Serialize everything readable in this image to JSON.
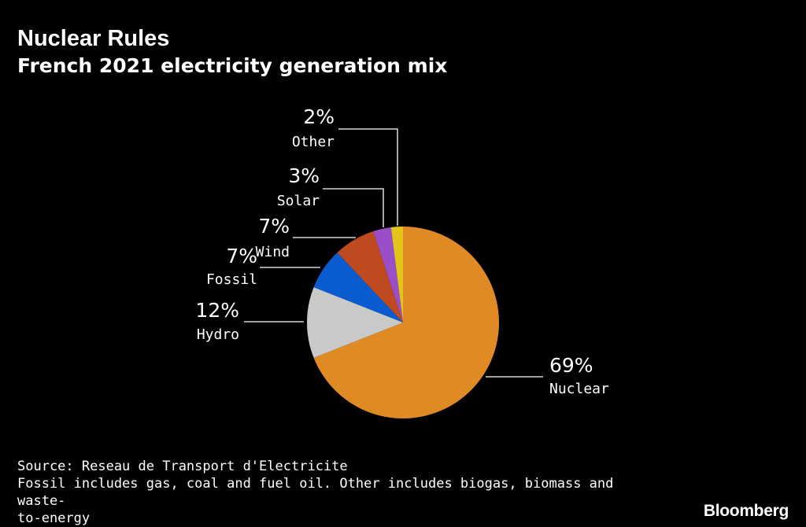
{
  "header": {
    "title": "Nuclear Rules",
    "subtitle": "French 2021 electricity generation mix"
  },
  "chart_data": {
    "type": "pie",
    "start_angle": "12 o'clock",
    "direction": "clockwise",
    "labels_format": "percent over category",
    "slices": [
      {
        "label": "Nuclear",
        "value": 69,
        "display": "69%",
        "color": "#e08a26"
      },
      {
        "label": "Hydro",
        "value": 12,
        "display": "12%",
        "color": "#c9c9c9"
      },
      {
        "label": "Fossil",
        "value": 7,
        "display": "7%",
        "color": "#0b5bd0"
      },
      {
        "label": "Wind",
        "value": 7,
        "display": "7%",
        "color": "#c04a1f"
      },
      {
        "label": "Solar",
        "value": 3,
        "display": "3%",
        "color": "#9a4fc9"
      },
      {
        "label": "Other",
        "value": 2,
        "display": "2%",
        "color": "#e3c418"
      }
    ]
  },
  "footer": {
    "source": "Source: Reseau de Transport d'Electricite",
    "note_line1": "Fossil includes gas, coal and fuel oil. Other includes biogas, biomass and waste-",
    "note_line2": "to-energy"
  },
  "brand": {
    "logo_text": "Bloomberg"
  }
}
